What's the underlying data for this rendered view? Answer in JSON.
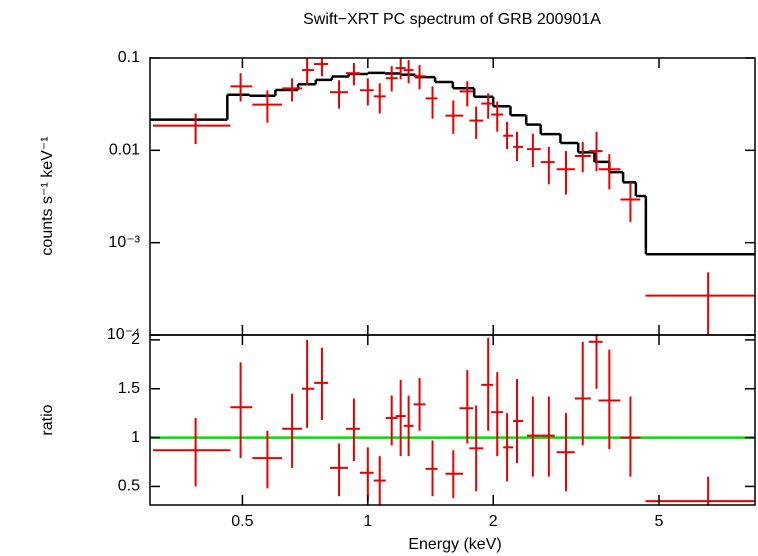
{
  "chart_data": [
    {
      "type": "spectrum",
      "title": "Swift−XRT PC spectrum of GRB 200901A",
      "ylabel": "counts s⁻¹ keV⁻¹",
      "xscale": "log",
      "yscale": "log",
      "xlim": [
        0.3,
        8.5
      ],
      "ylim": [
        0.0001,
        0.1
      ],
      "xticks": [
        0.5,
        1,
        2,
        5
      ],
      "yticks": [
        {
          "value": 0.1,
          "label": "0.1"
        },
        {
          "value": 0.01,
          "label": "0.01"
        },
        {
          "value": 0.001,
          "label": "10⁻³"
        },
        {
          "value": 0.0001,
          "label": "10⁻⁴"
        }
      ],
      "series": [
        {
          "color": "#e60000",
          "x": [
            0.386,
            0.495,
            0.574,
            0.658,
            0.715,
            0.776,
            0.853,
            0.926,
            1.0,
            1.068,
            1.141,
            1.199,
            1.253,
            1.331,
            1.43,
            1.604,
            1.733,
            1.82,
            1.945,
            2.045,
            2.159,
            2.281,
            2.49,
            2.72,
            2.99,
            3.28,
            3.54,
            3.8,
            4.27,
            6.56
          ],
          "x_low": [
            0.305,
            0.468,
            0.528,
            0.623,
            0.695,
            0.743,
            0.811,
            0.886,
            0.957,
            1.033,
            1.104,
            1.166,
            1.219,
            1.288,
            1.376,
            1.536,
            1.66,
            1.753,
            1.872,
            1.978,
            2.113,
            2.233,
            2.41,
            2.6,
            2.84,
            3.14,
            3.39,
            3.58,
            4.04,
            4.64
          ],
          "x_high": [
            0.468,
            0.528,
            0.623,
            0.695,
            0.743,
            0.803,
            0.896,
            0.957,
            1.033,
            1.104,
            1.179,
            1.233,
            1.288,
            1.376,
            1.47,
            1.694,
            1.791,
            1.893,
            2.0,
            2.113,
            2.233,
            2.36,
            2.6,
            2.81,
            3.14,
            3.43,
            3.66,
            4.04,
            4.51,
            8.5
          ],
          "values": [
            0.0185,
            0.0493,
            0.0313,
            0.0469,
            0.0739,
            0.086,
            0.0425,
            0.0685,
            0.0447,
            0.0384,
            0.0604,
            0.0777,
            0.0739,
            0.0635,
            0.0365,
            0.0238,
            0.0435,
            0.021,
            0.0321,
            0.0244,
            0.0144,
            0.0109,
            0.0103,
            0.00745,
            0.00624,
            0.00867,
            0.00982,
            0.00624,
            0.00293,
            0.000267
          ],
          "y_low": [
            0.0117,
            0.0338,
            0.0199,
            0.0338,
            0.0506,
            0.0635,
            0.0283,
            0.0506,
            0.0306,
            0.025,
            0.0435,
            0.0589,
            0.0532,
            0.0457,
            0.022,
            0.0151,
            0.0298,
            0.0133,
            0.022,
            0.0159,
            0.0103,
            0.00764,
            0.00657,
            0.00428,
            0.00332,
            0.00578,
            0.00593,
            0.00377,
            0.00168,
            5e-05
          ],
          "y_high": [
            0.025,
            0.0685,
            0.0447,
            0.0604,
            0.1,
            0.108,
            0.0574,
            0.0882,
            0.0604,
            0.0532,
            0.0818,
            0.1,
            0.0951,
            0.0838,
            0.0493,
            0.0347,
            0.056,
            0.0298,
            0.0414,
            0.0338,
            0.0204,
            0.0159,
            0.0151,
            0.0109,
            0.00982,
            0.0123,
            0.0159,
            0.0091,
            0.0045,
            0.000477
          ]
        }
      ],
      "model": {
        "color": "#000000",
        "edges": [
          0.3,
          0.46,
          0.52,
          0.6,
          0.68,
          0.75,
          0.82,
          0.9,
          1.0,
          1.1,
          1.2,
          1.3,
          1.45,
          1.6,
          1.8,
          2.0,
          2.2,
          2.4,
          2.6,
          2.9,
          3.2,
          3.5,
          3.8,
          4.1,
          4.4,
          4.65,
          8.5
        ],
        "values": [
          0.0215,
          0.04,
          0.039,
          0.045,
          0.052,
          0.058,
          0.063,
          0.067,
          0.069,
          0.068,
          0.066,
          0.062,
          0.055,
          0.047,
          0.038,
          0.03,
          0.024,
          0.019,
          0.015,
          0.012,
          0.0095,
          0.0075,
          0.0058,
          0.0045,
          0.0032,
          0.00075
        ]
      }
    },
    {
      "type": "ratio",
      "ylabel": "ratio",
      "xlabel": "Energy (keV)",
      "xscale": "log",
      "xlim": [
        0.3,
        8.5
      ],
      "ylim": [
        0.31,
        2.05
      ],
      "xticks": [
        0.5,
        1,
        2,
        5
      ],
      "yticks": [
        0.5,
        1,
        1.5,
        2
      ],
      "reference_line": {
        "value": 1,
        "color": "#00e000"
      },
      "series": [
        {
          "color": "#e60000",
          "x": [
            0.386,
            0.495,
            0.574,
            0.658,
            0.715,
            0.776,
            0.853,
            0.926,
            1.0,
            1.068,
            1.141,
            1.199,
            1.253,
            1.331,
            1.43,
            1.604,
            1.733,
            1.82,
            1.945,
            2.045,
            2.159,
            2.281,
            2.49,
            2.72,
            2.99,
            3.28,
            3.54,
            3.8,
            4.27,
            6.56
          ],
          "x_low": [
            0.305,
            0.468,
            0.528,
            0.623,
            0.695,
            0.743,
            0.811,
            0.886,
            0.957,
            1.033,
            1.104,
            1.166,
            1.219,
            1.288,
            1.376,
            1.536,
            1.66,
            1.753,
            1.872,
            1.978,
            2.113,
            2.233,
            2.41,
            2.6,
            2.84,
            3.14,
            3.39,
            3.58,
            4.04,
            4.64
          ],
          "x_high": [
            0.468,
            0.528,
            0.623,
            0.695,
            0.743,
            0.803,
            0.896,
            0.957,
            1.033,
            1.104,
            1.179,
            1.233,
            1.288,
            1.376,
            1.47,
            1.694,
            1.791,
            1.893,
            2.0,
            2.113,
            2.233,
            2.36,
            2.6,
            2.81,
            3.14,
            3.43,
            3.66,
            4.04,
            4.51,
            8.5
          ],
          "values": [
            0.87,
            1.31,
            0.79,
            1.09,
            1.5,
            1.56,
            0.69,
            1.09,
            0.64,
            0.56,
            1.2,
            1.22,
            1.12,
            1.34,
            0.68,
            0.63,
            1.3,
            0.89,
            1.54,
            1.26,
            0.9,
            1.17,
            1.02,
            1.02,
            0.85,
            1.4,
            1.98,
            1.38,
            1.0,
            0.35
          ],
          "y_low": [
            0.5,
            0.79,
            0.48,
            0.69,
            1.1,
            1.18,
            0.4,
            0.76,
            0.35,
            0.3,
            0.92,
            0.81,
            0.81,
            1.07,
            0.4,
            0.38,
            0.94,
            0.45,
            1.07,
            0.81,
            0.55,
            0.74,
            0.6,
            0.6,
            0.45,
            0.92,
            1.5,
            0.88,
            0.6,
            0.15
          ],
          "y_high": [
            1.2,
            1.77,
            1.07,
            1.45,
            2.0,
            1.92,
            0.94,
            1.4,
            0.9,
            0.81,
            1.43,
            1.59,
            1.43,
            1.61,
            0.97,
            0.87,
            1.69,
            1.33,
            2.02,
            1.67,
            1.25,
            1.6,
            1.42,
            1.42,
            1.25,
            1.98,
            2.4,
            1.9,
            1.42,
            0.6
          ]
        }
      ]
    }
  ]
}
